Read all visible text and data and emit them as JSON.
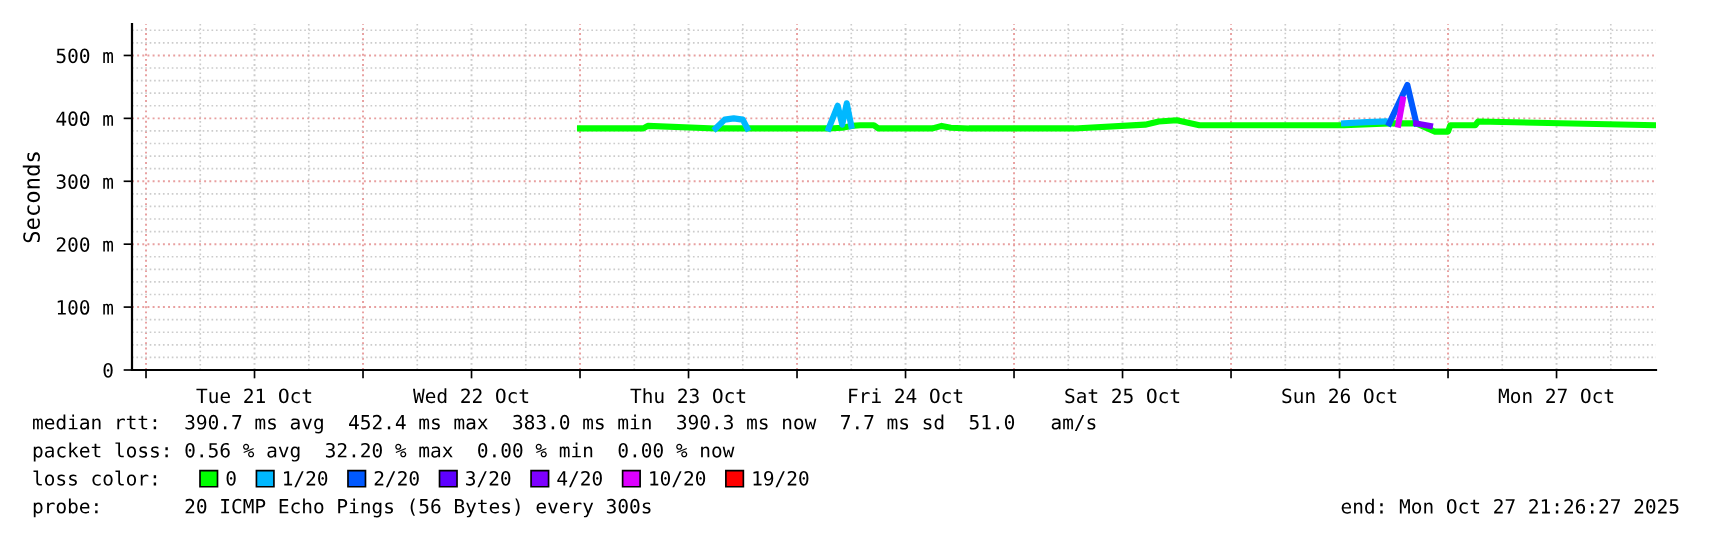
{
  "chart_data": {
    "type": "line",
    "ylabel": "Seconds",
    "xlim": [
      "2025-10-20T22:27",
      "2025-10-27T23:00"
    ],
    "xticks": [
      {
        "value": "2025-10-21T00:00",
        "label": null
      },
      {
        "value": "2025-10-21T12:00",
        "label": "Tue 21 Oct"
      },
      {
        "value": "2025-10-22T00:00",
        "label": null
      },
      {
        "value": "2025-10-22T12:00",
        "label": "Wed 22 Oct"
      },
      {
        "value": "2025-10-23T00:00",
        "label": null
      },
      {
        "value": "2025-10-23T12:00",
        "label": "Thu 23 Oct"
      },
      {
        "value": "2025-10-24T00:00",
        "label": null
      },
      {
        "value": "2025-10-24T12:00",
        "label": "Fri 24 Oct"
      },
      {
        "value": "2025-10-25T00:00",
        "label": null
      },
      {
        "value": "2025-10-25T12:00",
        "label": "Sat 25 Oct"
      },
      {
        "value": "2025-10-26T00:00",
        "label": null
      },
      {
        "value": "2025-10-26T12:00",
        "label": "Sun 26 Oct"
      },
      {
        "value": "2025-10-27T00:00",
        "label": null
      },
      {
        "value": "2025-10-27T12:00",
        "label": "Mon 27 Oct"
      }
    ],
    "ylim": [
      0,
      550
    ],
    "yticks": [
      {
        "value": 0,
        "label": "0"
      },
      {
        "value": 100,
        "label": "100 m"
      },
      {
        "value": 200,
        "label": "200 m"
      },
      {
        "value": 300,
        "label": "300 m"
      },
      {
        "value": 400,
        "label": "400 m"
      },
      {
        "value": 500,
        "label": "500 m"
      }
    ],
    "grid": true,
    "legend": "bottom",
    "legend_title": "loss color:",
    "marker": "none",
    "line_style": "solid",
    "series": [
      {
        "name": "0",
        "color": "#00ff00",
        "x": [
          "2025-10-23T00:00",
          "2025-10-23T07:00",
          "2025-10-23T07:30",
          "2025-10-23T15:00",
          "2025-10-23T18:30",
          "2025-10-24T03:30",
          "2025-10-24T05:00",
          "2025-10-24T06:00",
          "2025-10-24T07:00",
          "2025-10-24T08:30",
          "2025-10-24T09:00",
          "2025-10-24T15:00",
          "2025-10-24T16:00",
          "2025-10-24T17:00",
          "2025-10-24T19:00",
          "2025-10-25T06:00",
          "2025-10-25T06:40",
          "2025-10-25T14:30",
          "2025-10-25T16:00",
          "2025-10-25T18:00",
          "2025-10-25T20:30",
          "2025-10-26T12:30",
          "2025-10-26T17:30",
          "2025-10-26T20:30",
          "2025-10-26T22:30",
          "2025-10-27T00:00",
          "2025-10-27T00:15",
          "2025-10-27T03:00",
          "2025-10-27T03:20",
          "2025-10-27T23:00"
        ],
        "values": [
          384,
          384,
          388,
          384,
          384,
          384,
          385,
          388,
          389,
          389,
          384,
          384,
          388,
          385,
          384,
          384,
          384,
          390,
          395,
          397,
          389,
          389,
          392,
          392,
          379,
          379,
          389,
          389,
          395,
          389
        ]
      },
      {
        "name": "1/20",
        "color": "#00b8ff",
        "x": [
          "2025-10-23T15:00",
          "2025-10-23T16:00",
          "2025-10-23T17:00",
          "2025-10-23T18:00",
          "2025-10-23T18:30",
          null,
          "2025-10-24T03:30",
          "2025-10-24T04:30",
          "2025-10-24T05:00",
          "2025-10-24T05:30",
          "2025-10-24T06:00",
          null,
          "2025-10-26T12:30",
          "2025-10-26T15:00",
          "2025-10-26T17:00"
        ],
        "values": [
          384,
          398,
          400,
          398,
          384,
          null,
          384,
          420,
          390,
          424,
          388,
          null,
          392,
          394,
          395
        ]
      },
      {
        "name": "2/20",
        "color": "#0059ff",
        "x": [
          "2025-10-26T17:30",
          "2025-10-26T19:30",
          "2025-10-26T20:30"
        ],
        "values": [
          392,
          453,
          392
        ]
      },
      {
        "name": "3/20",
        "color": "#5e00ff"
      },
      {
        "name": "4/20",
        "color": "#7e00ff",
        "x": [
          "2025-10-26T20:30",
          "2025-10-26T22:00"
        ],
        "values": [
          392,
          388
        ]
      },
      {
        "name": "10/20",
        "color": "#dd00ff",
        "x": [
          "2025-10-26T18:30",
          "2025-10-26T19:00"
        ],
        "values": [
          390,
          430
        ]
      },
      {
        "name": "19/20",
        "color": "#ff0000"
      }
    ],
    "annotations": [
      "median rtt:  390.7 ms avg  452.4 ms max  383.0 ms min  390.3 ms now  7.7 ms sd  51.0   am/s",
      "packet loss: 0.56 % avg  32.20 % max  0.00 % min  0.00 % now",
      "probe:       20 ICMP Echo Pings (56 Bytes) every 300s",
      "end: Mon Oct 27 21:26:27 2025"
    ]
  }
}
